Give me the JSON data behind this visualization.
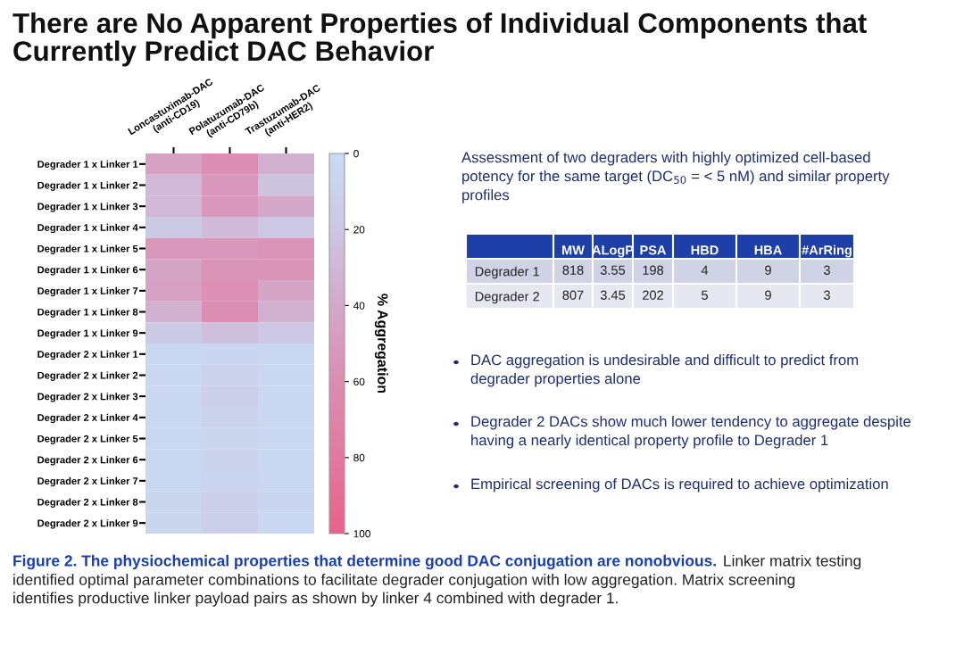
{
  "chart_data": [
    {
      "type": "heatmap",
      "title": "There are No Apparent Properties of Individual Components that Currently Predict DAC Behavior",
      "categories": [
        "Loncastuximab-DAC\n(anti-CD19)",
        "Polatuzumab-DAC\n(anti-CD79b)",
        "Trastuzumab-DAC\n(anti-HER2)"
      ],
      "y_categories": [
        "Degrader 1 x Linker 1",
        "Degrader 1 x Linker 2",
        "Degrader 1 x Linker 3",
        "Degrader 1 x Linker 4",
        "Degrader 1 x Linker 5",
        "Degrader 1 x Linker 6",
        "Degrader 1 x Linker 7",
        "Degrader 1 x Linker 8",
        "Degrader 1 x Linker 9",
        "Degrader 2 x Linker 1",
        "Degrader 2 x Linker 2",
        "Degrader 2 x Linker 3",
        "Degrader 2 x Linker 4",
        "Degrader 2 x Linker 5",
        "Degrader 2 x Linker 6",
        "Degrader 2 x Linker 7",
        "Degrader 2 x Linker 8",
        "Degrader 2 x Linker 9"
      ],
      "cells": [
        [
          45,
          60,
          35
        ],
        [
          30,
          52,
          22
        ],
        [
          30,
          52,
          40
        ],
        [
          18,
          28,
          18
        ],
        [
          52,
          52,
          55
        ],
        [
          42,
          55,
          55
        ],
        [
          45,
          58,
          42
        ],
        [
          35,
          60,
          35
        ],
        [
          18,
          25,
          20
        ],
        [
          4,
          5,
          4
        ],
        [
          4,
          10,
          4
        ],
        [
          4,
          12,
          4
        ],
        [
          4,
          10,
          4
        ],
        [
          4,
          6,
          4
        ],
        [
          4,
          9,
          4
        ],
        [
          4,
          7,
          4
        ],
        [
          6,
          12,
          5
        ],
        [
          6,
          12,
          4
        ]
      ],
      "clim": [
        0,
        100
      ],
      "cticks": [
        0,
        20,
        40,
        60,
        80,
        100
      ],
      "clabel": "% Aggregation",
      "annotations": [
        "Figure 2. The physiochemical properties that determine good DAC conjugation are nonobvious.",
        "Linker matrix testing\nidentified optimal parameter combinations to facilitate degrader conjugation with low aggregation. Matrix screening\nidentifies productive linker payload pairs as shown by linker 4 combined with degrader 1."
      ]
    },
    {
      "type": "heatmap",
      "title": "Assessment of two degraders with highly optimized cell-based\npotency for the same target (DC$_{50}$ = < 5 nM) and similar property\nprofiles",
      "categories": [
        "MW",
        "ALogP",
        "PSA",
        "HBD",
        "HBA",
        "#ArRing"
      ],
      "y_categories": [
        "Degrader 1",
        "Degrader 2"
      ],
      "cells": [
        [
          818,
          3.55,
          198,
          4,
          9,
          3
        ],
        [
          807,
          3.45,
          202,
          5,
          9,
          3
        ]
      ],
      "data_labels": true,
      "annotations": [
        "DAC aggregation is undesirable and difficult to predict from\ndegrader properties alone",
        "Degrader 2 DACs show much lower tendency to aggregate despite\nhaving a nearly identical property profile to Degrader 1",
        "Empirical screening of DACs is required to achieve optimization"
      ]
    }
  ]
}
